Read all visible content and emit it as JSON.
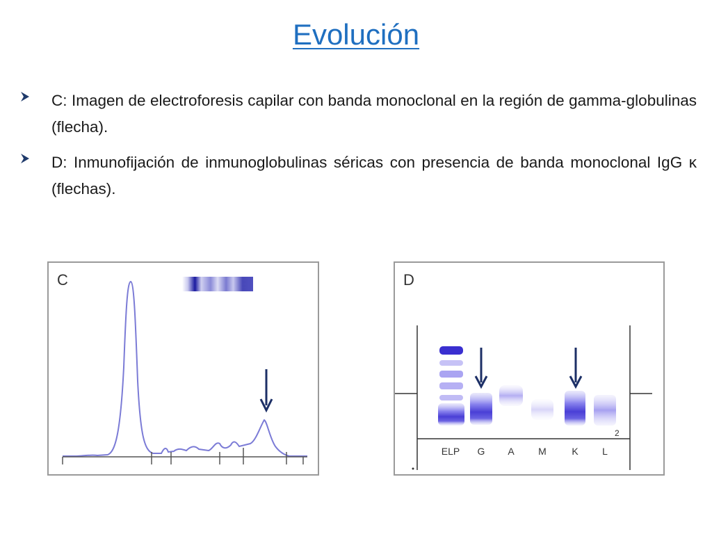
{
  "slide": {
    "title": "Evolución",
    "bullets": [
      "C: Imagen de electroforesis capilar con banda monoclonal en la región de gamma-globulinas (flecha).",
      "D: Inmunofijación de inmunoglobulinas séricas con presencia de banda monoclonal IgG κ (flechas)."
    ]
  },
  "figures": {
    "c": {
      "label": "C"
    },
    "d": {
      "label": "D",
      "lanes": [
        "ELP",
        "G",
        "A",
        "M",
        "K",
        "L"
      ],
      "marker": "2"
    }
  },
  "colors": {
    "title": "#1f6fc0",
    "bullet_arrow": "#1f3a6b",
    "curve": "#7b7bd6",
    "band": "#4a3fd6",
    "arrow": "#1c2f66"
  }
}
